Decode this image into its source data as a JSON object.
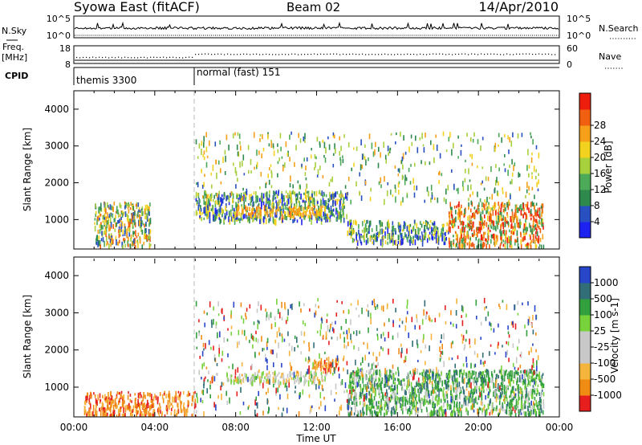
{
  "header": {
    "station": "Syowa East (fitACF)",
    "beam": "Beam 02",
    "date": "14/Apr/2010"
  },
  "nsky_panel": {
    "left_label": "N.Sky",
    "left_ticks": [
      "10^5",
      "10^0"
    ],
    "right_ticks": [
      "10^5",
      "10^0"
    ],
    "right_label": "N.Search"
  },
  "freq_panel": {
    "left_label_1": "Freq.",
    "left_label_2": "[MHz]",
    "left_ticks": [
      "18",
      "8"
    ],
    "right_ticks": [
      "60",
      "0"
    ],
    "right_label": "Nave"
  },
  "cpid": {
    "label": "CPID",
    "modes": [
      {
        "name": "themis 3300",
        "start_hour": 0
      },
      {
        "name": "normal (fast) 151",
        "start_hour": 6
      }
    ]
  },
  "colors": {
    "power": [
      "#1e22f0",
      "#2950c0",
      "#2d8a4c",
      "#4caa58",
      "#a8cf3c",
      "#f2d21e",
      "#f5a018",
      "#f06010",
      "#ee1e0c"
    ],
    "velocity": [
      "#e61e1e",
      "#f08c14",
      "#f5b43c",
      "#c8c8c8",
      "#c8c8c8",
      "#78d23c",
      "#32a03c",
      "#326e78",
      "#2846c8"
    ]
  },
  "chart_data": [
    {
      "type": "heatmap",
      "name": "power",
      "ylabel": "Slant Range [km]",
      "yticks": [
        "1000",
        "2000",
        "3000",
        "4000"
      ],
      "ylim": [
        200,
        4500
      ],
      "xlim": [
        0,
        24
      ],
      "colorbar": {
        "label": "Power [dB]",
        "ticks": [
          "4",
          "8",
          "12",
          "16",
          "20",
          "24",
          "28"
        ],
        "range": [
          0,
          30
        ]
      },
      "regions": [
        {
          "t": [
            1.0,
            3.8
          ],
          "r": [
            300,
            1500
          ],
          "level": "mixed_warm"
        },
        {
          "t": [
            6.0,
            13.5
          ],
          "r": [
            1000,
            1800
          ],
          "level": "mixed_cool"
        },
        {
          "t": [
            8.0,
            12.5
          ],
          "r": [
            1150,
            1400
          ],
          "level": "warm_band"
        },
        {
          "t": [
            13.5,
            18.5
          ],
          "r": [
            400,
            1000
          ],
          "level": "mixed_cool"
        },
        {
          "t": [
            18.5,
            23.2
          ],
          "r": [
            300,
            1500
          ],
          "level": "hot"
        },
        {
          "t": [
            6.0,
            23.0
          ],
          "r": [
            1500,
            3400
          ],
          "level": "sparse"
        }
      ]
    },
    {
      "type": "heatmap",
      "name": "velocity",
      "ylabel": "Slant Range [km]",
      "yticks": [
        "1000",
        "2000",
        "3000",
        "4000"
      ],
      "ylim": [
        200,
        4500
      ],
      "xlim": [
        0,
        24
      ],
      "colorbar": {
        "label": "Velocity [m s-1]",
        "ticks": [
          "1000",
          "500",
          "100",
          "25",
          "-25",
          "-100",
          "-500",
          "-1000"
        ],
        "range": [
          -1000,
          1000
        ]
      },
      "regions": [
        {
          "t": [
            0.5,
            6.0
          ],
          "r": [
            250,
            900
          ],
          "level": "negative"
        },
        {
          "t": [
            7.5,
            12.5
          ],
          "r": [
            1150,
            1450
          ],
          "level": "near_zero"
        },
        {
          "t": [
            11.5,
            13.5
          ],
          "r": [
            1500,
            1800
          ],
          "level": "negative"
        },
        {
          "t": [
            13.5,
            23.2
          ],
          "r": [
            300,
            1500
          ],
          "level": "positive"
        },
        {
          "t": [
            6.0,
            23.0
          ],
          "r": [
            300,
            3400
          ],
          "level": "sparse_mixed"
        }
      ]
    }
  ],
  "xaxis": {
    "label": "Time UT",
    "ticks": [
      "00:00",
      "04:00",
      "08:00",
      "12:00",
      "16:00",
      "20:00",
      "00:00"
    ]
  }
}
